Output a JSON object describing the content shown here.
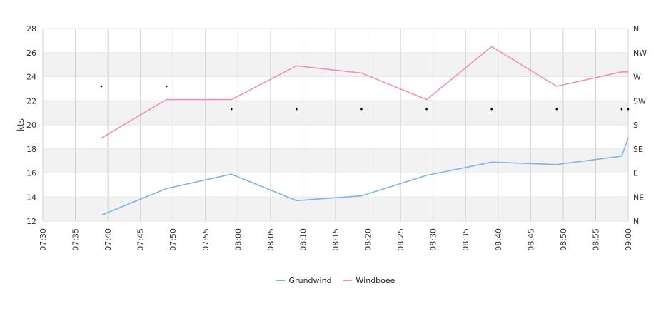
{
  "chart_data": {
    "type": "line",
    "ylabel": "kts",
    "ylim": [
      12,
      28
    ],
    "y_ticks": [
      "12",
      "14",
      "16",
      "18",
      "20",
      "22",
      "24",
      "26",
      "28"
    ],
    "x_start": "07:30",
    "x_end": "09:00",
    "x_ticks": [
      "07:30",
      "07:35",
      "07:40",
      "07:45",
      "07:50",
      "07:55",
      "08:00",
      "08:05",
      "08:10",
      "08:15",
      "08:20",
      "08:25",
      "08:30",
      "08:35",
      "08:40",
      "08:45",
      "08:50",
      "08:55",
      "09:00"
    ],
    "right_ticks": [
      "N",
      "NE",
      "E",
      "SE",
      "S",
      "SW",
      "W",
      "NW",
      "N"
    ],
    "grid": true,
    "legend_position": "bottom",
    "series": [
      {
        "name": "Grundwind",
        "color": "#7cb5ec",
        "x": [
          "07:39",
          "07:49",
          "07:59",
          "08:09",
          "08:19",
          "08:29",
          "08:39",
          "08:49",
          "08:59",
          "09:00"
        ],
        "values": [
          12.5,
          14.7,
          15.9,
          13.7,
          14.1,
          15.8,
          16.9,
          16.7,
          17.4,
          18.9
        ]
      },
      {
        "name": "Windboee",
        "color": "#f18fbf",
        "x": [
          "07:39",
          "07:49",
          "07:59",
          "08:09",
          "08:19",
          "08:29",
          "08:39",
          "08:49",
          "08:59",
          "09:00"
        ],
        "values": [
          18.9,
          22.1,
          22.1,
          24.9,
          24.3,
          22.1,
          26.5,
          23.2,
          24.4,
          24.4
        ]
      }
    ],
    "direction_markers": {
      "x": [
        "07:39",
        "07:49",
        "07:59",
        "08:09",
        "08:19",
        "08:29",
        "08:39",
        "08:49",
        "08:59",
        "09:00"
      ],
      "values": [
        23.2,
        23.2,
        21.3,
        21.3,
        21.3,
        21.3,
        21.3,
        21.3,
        21.3,
        21.3
      ]
    }
  }
}
